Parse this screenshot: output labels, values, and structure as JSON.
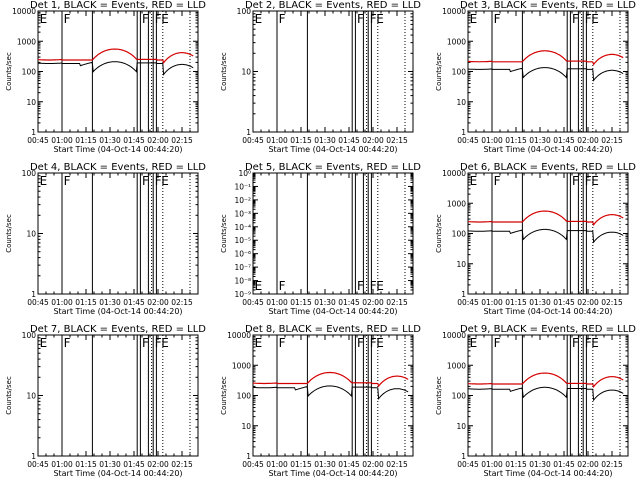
{
  "colors": {
    "events": "#000000",
    "lld": "#d40000",
    "axis": "#000000"
  },
  "common": {
    "xticks": [
      "00:45",
      "01:00",
      "01:15",
      "01:30",
      "01:45",
      "02:00",
      "02:15"
    ],
    "xlabel": "Start Time (04-Oct-14 00:44:20)",
    "ylabel": "Counts/sec",
    "x_range_minutes": [
      0,
      100
    ],
    "solid_vlines_min": [
      15,
      34,
      62,
      64,
      69,
      72,
      74
    ],
    "dotted_vlines_min": [
      71,
      78,
      95
    ],
    "markers": [
      {
        "text": "F",
        "x_min": 16
      },
      {
        "text": "F",
        "x_min": 65
      },
      {
        "text": "F",
        "x_min": 73
      },
      {
        "text": "E",
        "x_min": 77
      }
    ]
  },
  "chart_data": [
    {
      "id": "det1",
      "title": "Det 1, BLACK = Events, RED = LLD",
      "type": "line",
      "scale": "log",
      "ylim": [
        1,
        10000
      ],
      "ytick_labels": [
        "1",
        "10",
        "100",
        "1000",
        "10000"
      ],
      "first_marker": "E",
      "has_data": true,
      "lld_level": 240,
      "evt_ratio": 0.85
    },
    {
      "id": "det2",
      "title": "Det 2, BLACK = Events, RED = LLD",
      "type": "line",
      "scale": "log",
      "ylim": [
        1,
        100
      ],
      "ytick_labels": [
        "1",
        "10",
        "100"
      ],
      "first_marker": "E",
      "has_data": false
    },
    {
      "id": "det3",
      "title": "Det 3, BLACK = Events, RED = LLD",
      "type": "line",
      "scale": "log",
      "ylim": [
        1,
        10000
      ],
      "ytick_labels": [
        "1",
        "10",
        "100",
        "1000",
        "10000"
      ],
      "first_marker": "E",
      "has_data": true,
      "lld_level": 210,
      "evt_ratio": 0.62
    },
    {
      "id": "det4",
      "title": "Det 4, BLACK = Events, RED = LLD",
      "type": "line",
      "scale": "log",
      "ylim": [
        1,
        100
      ],
      "ytick_labels": [
        "1",
        "10",
        "100"
      ],
      "first_marker": "E",
      "has_data": false
    },
    {
      "id": "det5",
      "title": "Det 5, BLACK = Events, RED = LLD",
      "type": "line",
      "scale": "log",
      "ylim": [
        1e-09,
        1
      ],
      "ytick_labels": [
        "10⁰",
        "10⁻¹",
        "10⁻²",
        "10⁻³",
        "10⁻⁴",
        "10⁻⁵",
        "10⁻⁶",
        "10⁻⁷",
        "10⁻⁸",
        "10⁻⁹"
      ],
      "ytick_values": [
        1,
        0.1,
        0.01,
        0.001,
        0.0001,
        1e-05,
        1e-06,
        1e-07,
        1e-08,
        1e-09
      ],
      "first_marker": "E",
      "has_data": false,
      "markers_at_bottom": true
    },
    {
      "id": "det6",
      "title": "Det 6, BLACK = Events, RED = LLD",
      "type": "line",
      "scale": "log",
      "ylim": [
        1,
        10000
      ],
      "ytick_labels": [
        "1",
        "10",
        "100",
        "1000",
        "10000"
      ],
      "first_marker": "E",
      "has_data": true,
      "lld_level": 240,
      "evt_ratio": 0.55
    },
    {
      "id": "det7",
      "title": "Det 7, BLACK = Events, RED = LLD",
      "type": "line",
      "scale": "log",
      "ylim": [
        1,
        100
      ],
      "ytick_labels": [
        "1",
        "10",
        "100"
      ],
      "first_marker": "E",
      "has_data": false
    },
    {
      "id": "det8",
      "title": "Det 8, BLACK = Events, RED = LLD",
      "type": "line",
      "scale": "log",
      "ylim": [
        1,
        10000
      ],
      "ytick_labels": [
        "1",
        "10",
        "100",
        "1000",
        "10000"
      ],
      "first_marker": "E",
      "has_data": true,
      "lld_level": 250,
      "evt_ratio": 0.8
    },
    {
      "id": "det9",
      "title": "Det 9, BLACK = Events, RED = LLD",
      "type": "line",
      "scale": "log",
      "ylim": [
        1,
        10000
      ],
      "ytick_labels": [
        "1",
        "10",
        "100",
        "1000",
        "10000"
      ],
      "first_marker": "E",
      "has_data": true,
      "lld_level": 240,
      "evt_ratio": 0.75
    }
  ]
}
